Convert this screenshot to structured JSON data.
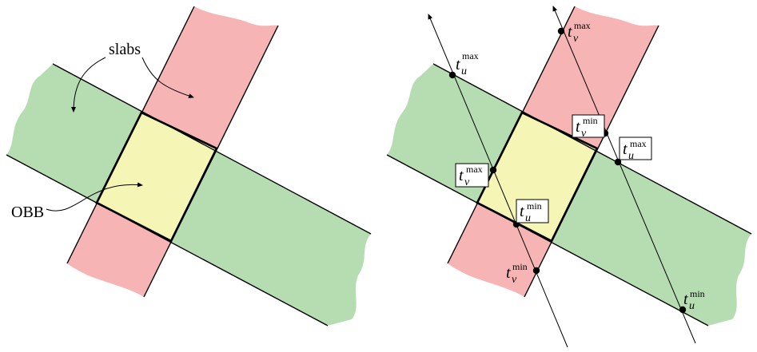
{
  "colors": {
    "green_slab": "#b6ddb1",
    "red_slab": "#f6b4b4",
    "obb": "#f5f5b5",
    "ink": "#000000"
  },
  "left_panel": {
    "slabs_label": "slabs",
    "obb_label": "OBB"
  },
  "right_panel": {
    "t": "t",
    "u": "u",
    "v": "v",
    "max": "max",
    "min": "min"
  }
}
